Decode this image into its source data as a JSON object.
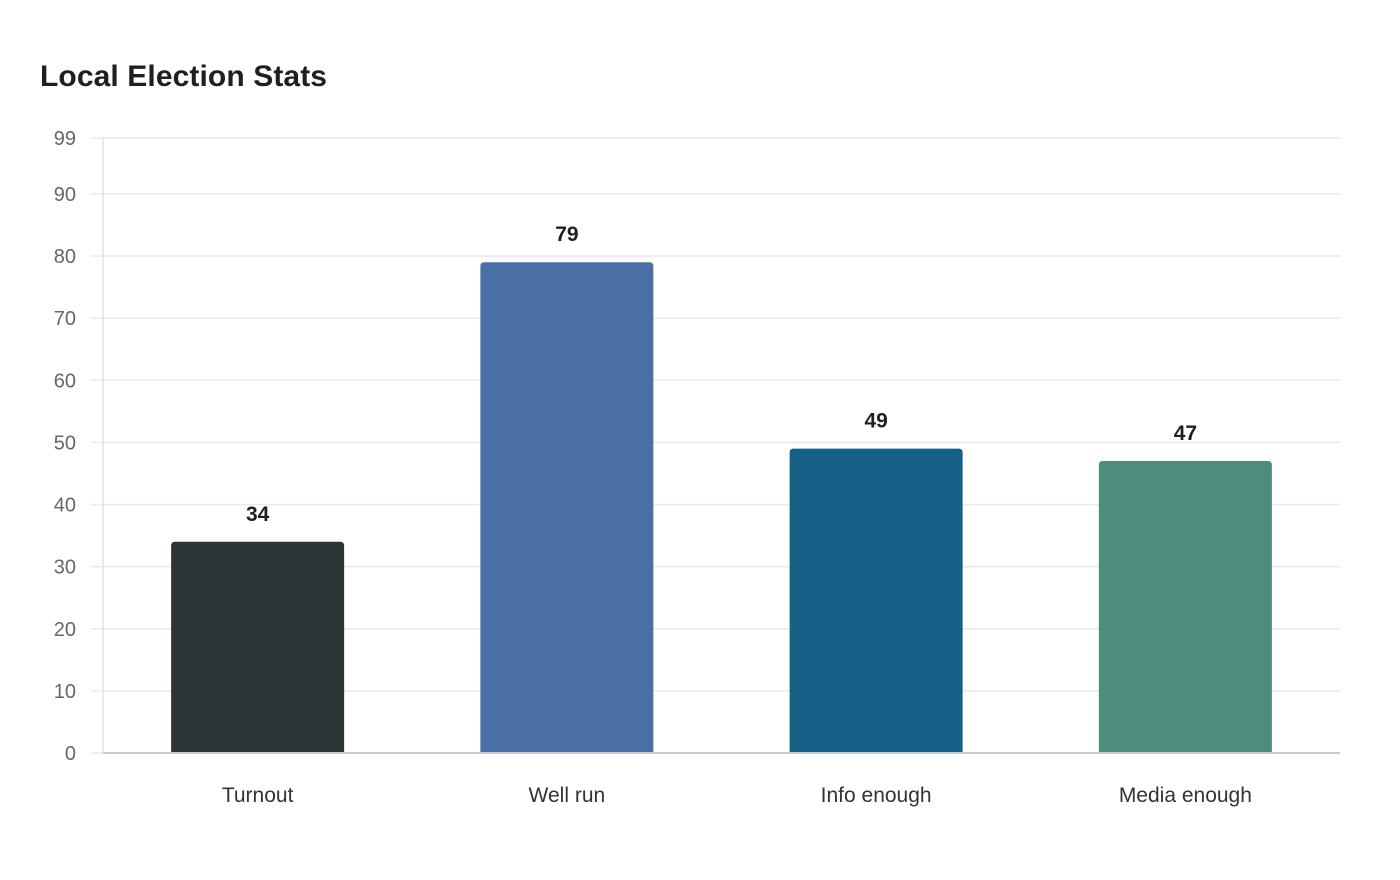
{
  "chart_data": {
    "type": "bar",
    "title": "Local Election Stats",
    "categories": [
      "Turnout",
      "Well run",
      "Info enough",
      "Media enough"
    ],
    "values": [
      34,
      79,
      49,
      47
    ],
    "bar_colors": [
      "#2d3436",
      "#4a6fa5",
      "#166088",
      "#4e8d7c"
    ],
    "ylim": [
      0,
      99
    ],
    "yticks": [
      0,
      10,
      20,
      30,
      40,
      50,
      60,
      70,
      80,
      90,
      99
    ],
    "xlabel": "",
    "ylabel": "",
    "grid": true,
    "data_labels": true,
    "grid_color": "#e9e9e9",
    "axis_color": "#cccccc"
  }
}
